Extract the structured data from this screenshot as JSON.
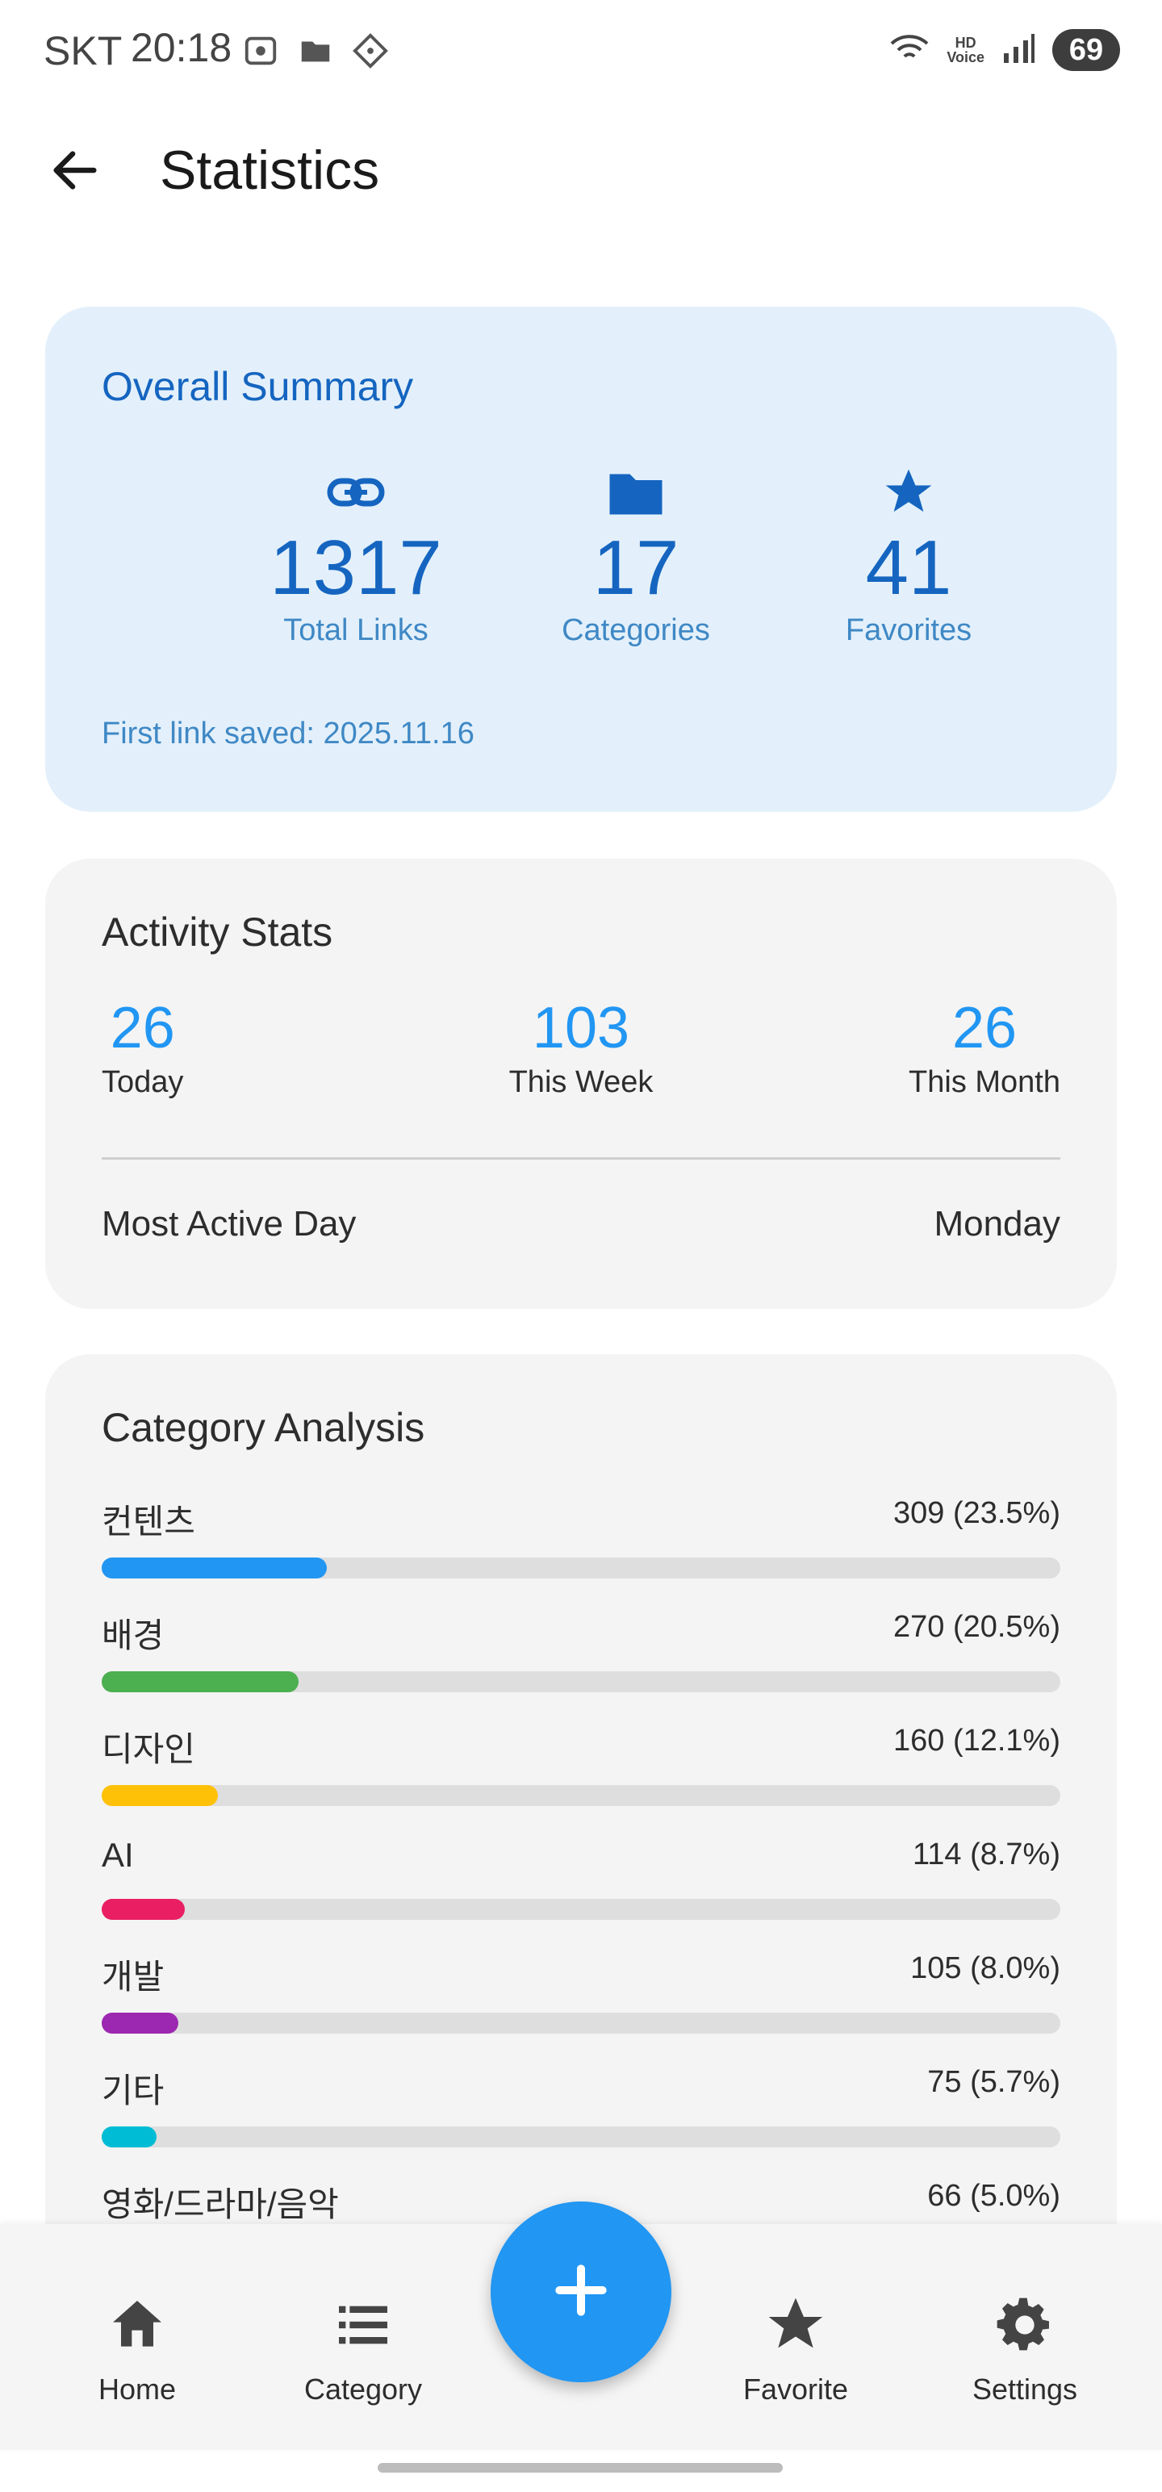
{
  "status_bar": {
    "carrier": "SKT",
    "time": "20:18",
    "battery": "69"
  },
  "header": {
    "title": "Statistics"
  },
  "summary": {
    "title": "Overall Summary",
    "items": [
      {
        "icon": "link-icon",
        "value": "1317",
        "label": "Total Links"
      },
      {
        "icon": "folder-icon",
        "value": "17",
        "label": "Categories"
      },
      {
        "icon": "star-icon",
        "value": "41",
        "label": "Favorites"
      }
    ],
    "first_saved": "First link saved: 2025.11.16"
  },
  "activity": {
    "title": "Activity Stats",
    "today": {
      "value": "26",
      "label": "Today"
    },
    "week": {
      "value": "103",
      "label": "This Week"
    },
    "month": {
      "value": "26",
      "label": "This Month"
    },
    "most_active_label": "Most Active Day",
    "most_active_value": "Monday"
  },
  "category_analysis": {
    "title": "Category Analysis",
    "rows": [
      {
        "name": "컨텐츠",
        "stat": "309 (23.5%)",
        "fraction": 0.235,
        "color": "#2196f3"
      },
      {
        "name": "배경",
        "stat": "270 (20.5%)",
        "fraction": 0.205,
        "color": "#4caf50"
      },
      {
        "name": "디자인",
        "stat": "160 (12.1%)",
        "fraction": 0.121,
        "color": "#ffc107"
      },
      {
        "name": "AI",
        "stat": "114 (8.7%)",
        "fraction": 0.087,
        "color": "#e91e63"
      },
      {
        "name": "개발",
        "stat": "105 (8.0%)",
        "fraction": 0.08,
        "color": "#9c27b0"
      },
      {
        "name": "기타",
        "stat": "75 (5.7%)",
        "fraction": 0.057,
        "color": "#00bcd4"
      },
      {
        "name": "영화/드라마/음악",
        "stat": "66 (5.0%)",
        "fraction": 0.05,
        "color": "#ff9800"
      }
    ]
  },
  "bottom_nav": {
    "home": "Home",
    "category": "Category",
    "favorite": "Favorite",
    "settings": "Settings"
  }
}
